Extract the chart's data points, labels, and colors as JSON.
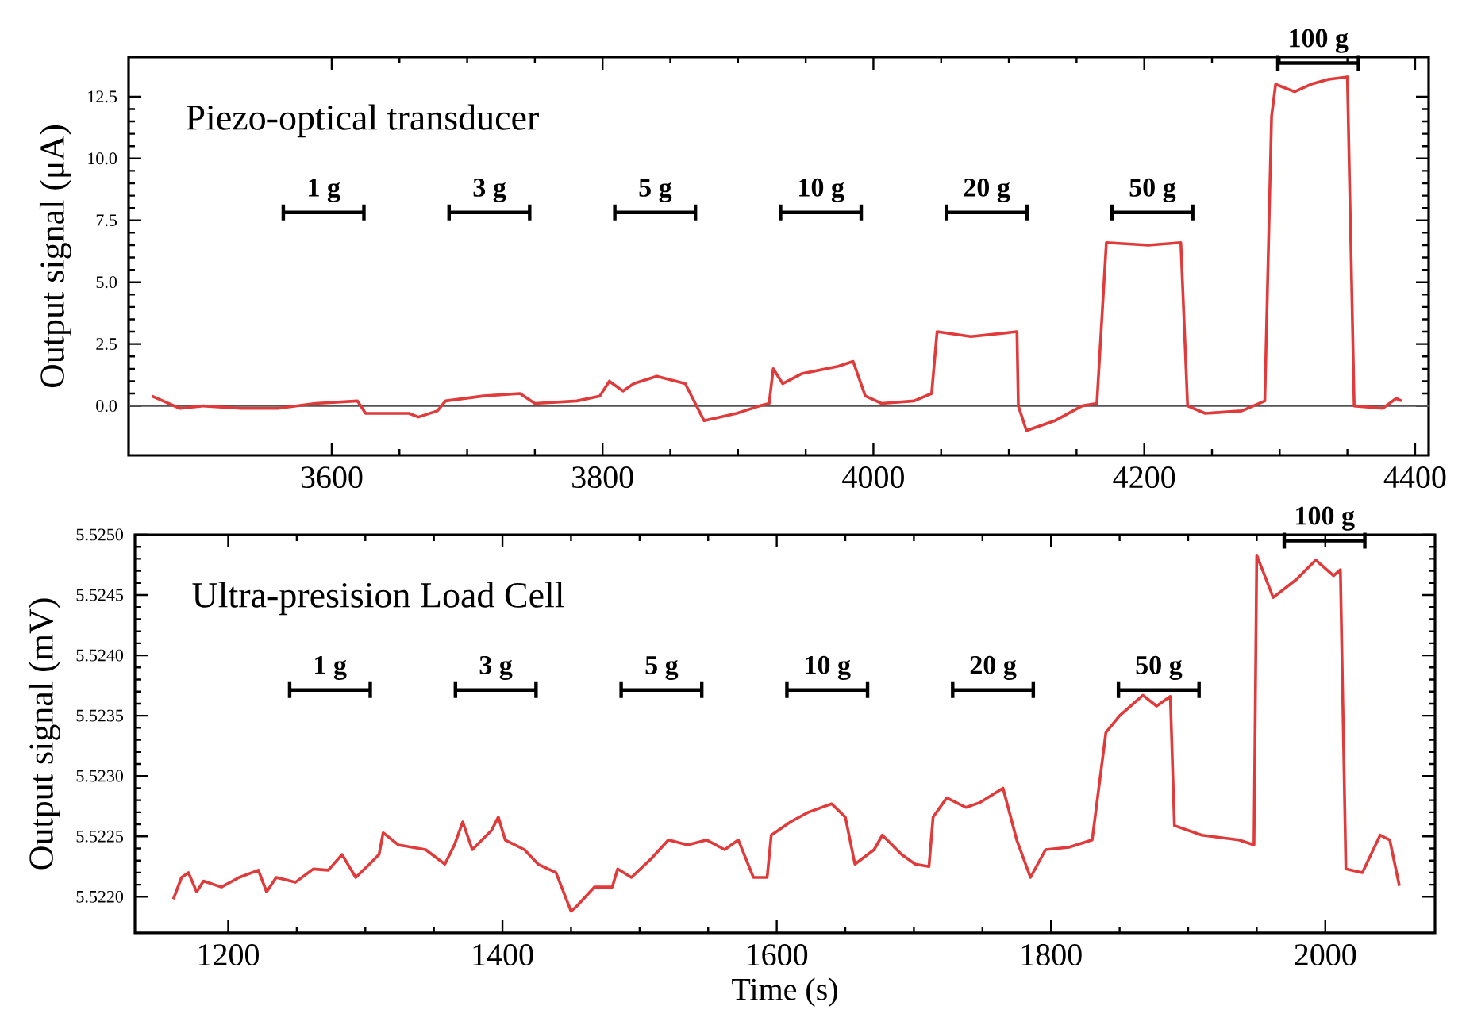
{
  "chart_data": [
    {
      "type": "line",
      "ylabel": "Output signal (μA)",
      "xlim": [
        3450,
        4410
      ],
      "ylim": [
        -2,
        14.1
      ],
      "xticks": [
        3600,
        3800,
        4000,
        4200,
        4400
      ],
      "yticks": [
        {
          "value": 0,
          "label": "0.0"
        },
        {
          "value": 2.5,
          "label": "2.5"
        },
        {
          "value": 5,
          "label": "5.0"
        },
        {
          "value": 7.5,
          "label": "7.5"
        },
        {
          "value": 10,
          "label": "10.0"
        },
        {
          "value": 12.5,
          "label": "12.5"
        }
      ],
      "grid": false,
      "ref_lines": [
        {
          "axis": "y",
          "value": 0,
          "color": "#555555"
        }
      ],
      "annotations": [
        "Piezo-optical transducer",
        "1 g",
        "3 g",
        "5 g",
        "10 g",
        "20 g",
        "50 g",
        "100 g"
      ],
      "series": [
        {
          "color": "#e03a3a",
          "x": [
            3467,
            3488,
            3505,
            3533,
            3560,
            3588,
            3619,
            3625,
            3657,
            3664,
            3678,
            3684,
            3712,
            3739,
            3750,
            3781,
            3798,
            3805,
            3815,
            3823,
            3840,
            3861,
            3875,
            3899,
            3916,
            3923,
            3926,
            3933,
            3947,
            3974,
            3985,
            3994,
            4006,
            4030,
            4043,
            4047,
            4072,
            4106,
            4107,
            4113,
            4134,
            4154,
            4165,
            4172,
            4203,
            4227,
            4232,
            4245,
            4272,
            4289,
            4294,
            4297,
            4311,
            4323,
            4336,
            4350,
            4355,
            4376,
            4386,
            4390
          ],
          "values": [
            0.4,
            -0.1,
            0.0,
            -0.1,
            -0.1,
            0.1,
            0.2,
            -0.3,
            -0.3,
            -0.45,
            -0.2,
            0.2,
            0.4,
            0.5,
            0.1,
            0.2,
            0.4,
            1.0,
            0.6,
            0.9,
            1.2,
            0.9,
            -0.6,
            -0.3,
            0.0,
            0.1,
            1.5,
            0.9,
            1.3,
            1.6,
            1.8,
            0.4,
            0.1,
            0.2,
            0.5,
            3.0,
            2.8,
            3.0,
            0.0,
            -1.0,
            -0.6,
            0.0,
            0.1,
            6.6,
            6.5,
            6.6,
            0.0,
            -0.3,
            -0.2,
            0.2,
            11.7,
            13.0,
            12.7,
            13.0,
            13.2,
            13.3,
            0.0,
            -0.1,
            0.3,
            0.2
          ]
        }
      ]
    },
    {
      "type": "line",
      "xlabel": "Time (s)",
      "ylabel": "Output signal (mV)",
      "xlim": [
        1132,
        2080
      ],
      "ylim": [
        5.5217,
        5.525
      ],
      "xticks": [
        1200,
        1400,
        1600,
        1800,
        2000
      ],
      "yticks": [
        {
          "value": 5.522,
          "label": "5.5220"
        },
        {
          "value": 5.5225,
          "label": "5.5225"
        },
        {
          "value": 5.523,
          "label": "5.5230"
        },
        {
          "value": 5.5235,
          "label": "5.5235"
        },
        {
          "value": 5.524,
          "label": "5.5240"
        },
        {
          "value": 5.5245,
          "label": "5.5245"
        },
        {
          "value": 5.525,
          "label": "5.5250"
        }
      ],
      "grid": false,
      "annotations": [
        "Ultra-presision Load Cell",
        "1 g",
        "3 g",
        "5 g",
        "10 g",
        "20 g",
        "50 g",
        "100 g"
      ],
      "series": [
        {
          "color": "#e03a3a",
          "x": [
            1160,
            1166,
            1171,
            1177,
            1182,
            1195,
            1208,
            1222,
            1228,
            1235,
            1249,
            1262,
            1273,
            1283,
            1293,
            1303,
            1310,
            1313,
            1324,
            1344,
            1358,
            1365,
            1371,
            1378,
            1392,
            1397,
            1402,
            1416,
            1426,
            1439,
            1450,
            1454,
            1467,
            1480,
            1484,
            1494,
            1508,
            1521,
            1535,
            1549,
            1562,
            1572,
            1583,
            1593,
            1596,
            1610,
            1623,
            1640,
            1650,
            1657,
            1671,
            1677,
            1691,
            1701,
            1711,
            1714,
            1724,
            1738,
            1748,
            1765,
            1775,
            1785,
            1796,
            1813,
            1830,
            1840,
            1850,
            1867,
            1877,
            1887,
            1890,
            1910,
            1937,
            1948,
            1950,
            1962,
            1979,
            1993,
            2006,
            2011,
            2015,
            2027,
            2040,
            2047,
            2054
          ],
          "values": [
            5.52198,
            5.52216,
            5.5222,
            5.52204,
            5.52213,
            5.52208,
            5.52216,
            5.52222,
            5.52204,
            5.52216,
            5.52212,
            5.52223,
            5.52222,
            5.52235,
            5.52216,
            5.52227,
            5.52235,
            5.52253,
            5.52243,
            5.52239,
            5.52227,
            5.52243,
            5.52262,
            5.52239,
            5.52255,
            5.52266,
            5.52247,
            5.52239,
            5.52227,
            5.5222,
            5.52188,
            5.52192,
            5.52208,
            5.52208,
            5.52223,
            5.52216,
            5.52231,
            5.52247,
            5.52243,
            5.52247,
            5.52239,
            5.52247,
            5.52216,
            5.52216,
            5.52251,
            5.52262,
            5.5227,
            5.52277,
            5.52266,
            5.52227,
            5.52239,
            5.52251,
            5.52235,
            5.52227,
            5.52225,
            5.52266,
            5.52282,
            5.52274,
            5.52278,
            5.5229,
            5.52247,
            5.52216,
            5.52239,
            5.52241,
            5.52247,
            5.52336,
            5.5235,
            5.52367,
            5.52358,
            5.52366,
            5.52259,
            5.52251,
            5.52247,
            5.52243,
            5.52483,
            5.52448,
            5.52463,
            5.52479,
            5.52466,
            5.52471,
            5.52223,
            5.5222,
            5.52251,
            5.52247,
            5.52209
          ]
        }
      ]
    }
  ]
}
